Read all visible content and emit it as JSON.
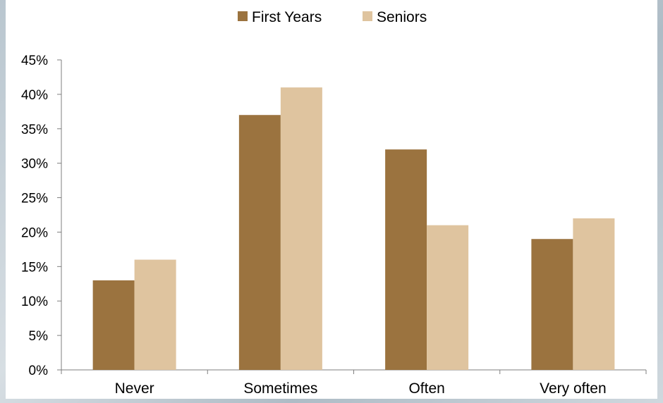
{
  "chart_data": {
    "type": "bar",
    "categories": [
      "Never",
      "Sometimes",
      "Often",
      "Very often"
    ],
    "series": [
      {
        "name": "First Years",
        "values": [
          13,
          37,
          32,
          19
        ],
        "color": "#9b733f"
      },
      {
        "name": "Seniors",
        "values": [
          16,
          41,
          21,
          22
        ],
        "color": "#dfc49f"
      }
    ],
    "ylim": [
      0,
      45
    ],
    "yticks": [
      0,
      5,
      10,
      15,
      20,
      25,
      30,
      35,
      40,
      45
    ],
    "ytick_labels": [
      "0%",
      "5%",
      "10%",
      "15%",
      "20%",
      "25%",
      "30%",
      "35%",
      "40%",
      "45%"
    ],
    "legend_position": "top",
    "grid": false
  }
}
